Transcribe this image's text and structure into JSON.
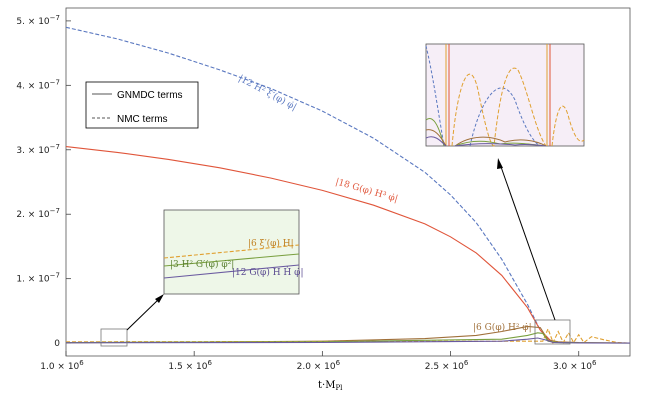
{
  "chart_data": {
    "type": "line",
    "xlabel": "t·M",
    "xlabel_sub": "Pl",
    "xlim": [
      1000000,
      3200000
    ],
    "ylim": [
      -2e-08,
      5.2e-07
    ],
    "x_ticks": [
      {
        "value": 1000000,
        "label": "1.0 × 10",
        "exp": "6"
      },
      {
        "value": 1500000,
        "label": "1.5 × 10",
        "exp": "6"
      },
      {
        "value": 2000000,
        "label": "2.0 × 10",
        "exp": "6"
      },
      {
        "value": 2500000,
        "label": "2.5 × 10",
        "exp": "6"
      },
      {
        "value": 3000000,
        "label": "3.0 × 10",
        "exp": "6"
      }
    ],
    "y_ticks": [
      {
        "value": 0,
        "label": "0",
        "exp": ""
      },
      {
        "value": 1e-07,
        "label": "1. × 10",
        "exp": "−7"
      },
      {
        "value": 2e-07,
        "label": "2. × 10",
        "exp": "−7"
      },
      {
        "value": 3e-07,
        "label": "3. × 10",
        "exp": "−7"
      },
      {
        "value": 4e-07,
        "label": "4. × 10",
        "exp": "−7"
      },
      {
        "value": 5e-07,
        "label": "5. × 10",
        "exp": "−7"
      }
    ],
    "legend": [
      {
        "name": "GNMDC terms",
        "dash": "solid"
      },
      {
        "name": "NMC terms",
        "dash": "dashed"
      }
    ],
    "series": [
      {
        "label": "|12 H² ξ′(φ) φ̇|",
        "color": "#5a78c0",
        "dash": "dashed",
        "x": [
          1000000,
          1200000,
          1400000,
          1600000,
          1800000,
          2000000,
          2200000,
          2400000,
          2500000,
          2600000,
          2700000,
          2800000,
          2850000,
          2900000
        ],
        "y": [
          4.9e-07,
          4.72e-07,
          4.5e-07,
          4.24e-07,
          3.95e-07,
          3.6e-07,
          3.18e-07,
          2.65e-07,
          2.3e-07,
          1.87e-07,
          1.3e-07,
          6e-08,
          2e-08,
          0
        ]
      },
      {
        "label": "|18 G(φ) H³ φ̇|",
        "color": "#e0553a",
        "dash": "solid",
        "x": [
          1000000,
          1200000,
          1400000,
          1600000,
          1800000,
          2000000,
          2200000,
          2400000,
          2500000,
          2600000,
          2700000,
          2800000,
          2850000,
          2900000
        ],
        "y": [
          3.05e-07,
          2.96e-07,
          2.85e-07,
          2.72e-07,
          2.56e-07,
          2.37e-07,
          2.14e-07,
          1.85e-07,
          1.65e-07,
          1.4e-07,
          1.05e-07,
          5.5e-08,
          2e-08,
          0
        ]
      },
      {
        "label": "|6 G(φ) H² φ̇|",
        "color": "#a0703a",
        "dash": "solid",
        "x": [
          1000000,
          1500000,
          2000000,
          2400000,
          2600000,
          2700000,
          2800000,
          2850000,
          2880000,
          2920000,
          3000000,
          3200000
        ],
        "y": [
          5e-10,
          1.5e-09,
          3e-09,
          7e-09,
          1.2e-08,
          1.8e-08,
          2.6e-08,
          2.4e-08,
          5e-09,
          2e-09,
          1e-09,
          1e-10
        ]
      },
      {
        "label": "|6 ξ′(φ) H|",
        "color": "#e0a030",
        "dash": "dashed",
        "x": [
          1000000,
          2800000,
          2860000,
          2880000,
          2900000,
          2920000,
          2940000,
          2960000,
          2980000,
          3000000,
          3020000,
          3050000,
          3100000,
          3150000,
          3200000
        ],
        "y": [
          2e-09,
          3e-09,
          3e-09,
          2.2e-08,
          1e-09,
          1.8e-08,
          1e-09,
          1.6e-08,
          1e-09,
          1.3e-08,
          1e-09,
          1e-08,
          5e-09,
          1e-09,
          0
        ]
      },
      {
        "label": "|3 H² G′(φ) φ̇²|",
        "color": "#7aa040",
        "dash": "solid",
        "x": [
          1000000,
          2000000,
          2700000,
          2800000,
          2840000,
          2860000,
          2880000,
          2920000,
          3000000,
          3200000
        ],
        "y": [
          1e-09,
          2e-09,
          6e-09,
          1.2e-08,
          1.6e-08,
          1.5e-08,
          3e-09,
          1e-09,
          5e-10,
          0
        ]
      },
      {
        "label": "|12 G(φ) H Ḣ φ̇|",
        "color": "#6a5aa0",
        "dash": "solid",
        "x": [
          1000000,
          2000000,
          2700000,
          2800000,
          2840000,
          2870000,
          2900000,
          3000000,
          3200000
        ],
        "y": [
          5e-10,
          1e-09,
          3e-09,
          6e-09,
          8e-09,
          5e-09,
          1e-09,
          3e-10,
          0
        ]
      }
    ],
    "insets": [
      {
        "name": "left-zoom",
        "labels": [
          "|6 ξ′(φ) H|",
          "|3 H² G′(φ) φ̇²|",
          "|12 G(φ) H Ḣ φ̇|"
        ]
      },
      {
        "name": "right-zoom",
        "labels": []
      }
    ]
  }
}
